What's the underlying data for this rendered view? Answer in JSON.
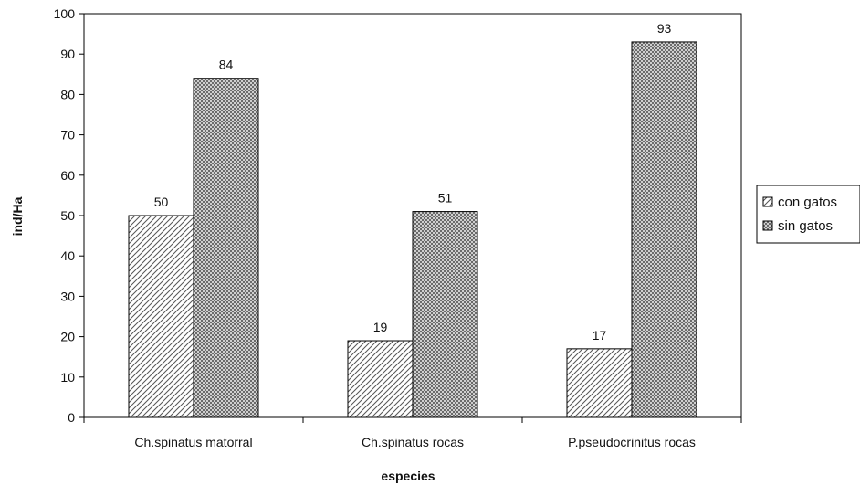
{
  "chart_data": {
    "type": "bar",
    "title": "",
    "xlabel": "especies",
    "ylabel": "ind/Ha",
    "categories": [
      "Ch.spinatus matorral",
      "Ch.spinatus rocas",
      "P.pseudocrinitus rocas"
    ],
    "series": [
      {
        "name": "con gatos",
        "values": [
          50,
          19,
          17
        ],
        "pattern": "diagonal-hatch"
      },
      {
        "name": "sin gatos",
        "values": [
          84,
          51,
          93
        ],
        "pattern": "dark-checker"
      }
    ],
    "ylim": [
      0,
      100
    ],
    "yticks": [
      0,
      10,
      20,
      30,
      40,
      50,
      60,
      70,
      80,
      90,
      100
    ],
    "grid": false,
    "legend": "right",
    "data_labels": true,
    "colors": {
      "bar_stroke": "#000000",
      "hatch_bg": "#ffffff",
      "hatch_line": "#555555",
      "checker_bg": "#6a6a6a",
      "checker_dot": "#cfcfcf"
    }
  }
}
